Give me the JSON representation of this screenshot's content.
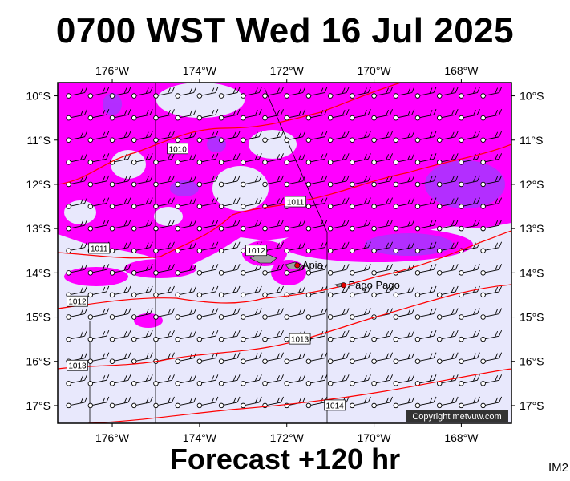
{
  "header": {
    "title": "0700 WST Wed 16 Jul 2025"
  },
  "footer": {
    "forecast": "Forecast +120 hr",
    "image_code": "IM2",
    "copyright": "Copyright metvuw.com"
  },
  "map": {
    "lon_ticks": [
      {
        "lon": -176,
        "label": "176°W"
      },
      {
        "lon": -174,
        "label": "174°W"
      },
      {
        "lon": -172,
        "label": "172°W"
      },
      {
        "lon": -170,
        "label": "170°W"
      },
      {
        "lon": -168,
        "label": "168°W"
      }
    ],
    "lat_ticks": [
      {
        "lat": -10,
        "label": "10°S"
      },
      {
        "lat": -11,
        "label": "11°S"
      },
      {
        "lat": -12,
        "label": "12°S"
      },
      {
        "lat": -13,
        "label": "13°S"
      },
      {
        "lat": -14,
        "label": "14°S"
      },
      {
        "lat": -15,
        "label": "15°S"
      },
      {
        "lat": -16,
        "label": "16°S"
      },
      {
        "lat": -17,
        "label": "17°S"
      }
    ],
    "places": [
      {
        "name": "Apia",
        "lon": -171.76,
        "lat": -13.83
      },
      {
        "name": "Pago Pago",
        "lon": -170.7,
        "lat": -14.28
      }
    ],
    "isobar_labels": [
      {
        "text": "1010",
        "lon": -174.5,
        "lat": -11.2
      },
      {
        "text": "1011",
        "lon": -171.8,
        "lat": -12.4
      },
      {
        "text": "1011",
        "lon": -176.3,
        "lat": -13.45
      },
      {
        "text": "1012",
        "lon": -172.7,
        "lat": -13.5
      },
      {
        "text": "1012",
        "lon": -176.8,
        "lat": -14.65
      },
      {
        "text": "1013",
        "lon": -171.7,
        "lat": -15.5
      },
      {
        "text": "1013",
        "lon": -176.8,
        "lat": -16.1
      },
      {
        "text": "1014",
        "lon": -170.9,
        "lat": -17.0
      }
    ],
    "colors": {
      "ocean": "#e8e8fc",
      "rain_light": "#ff00ff",
      "rain_heavy": "#9a3dff",
      "isobar": "#ff0000",
      "land": "#a0a0a0"
    }
  }
}
